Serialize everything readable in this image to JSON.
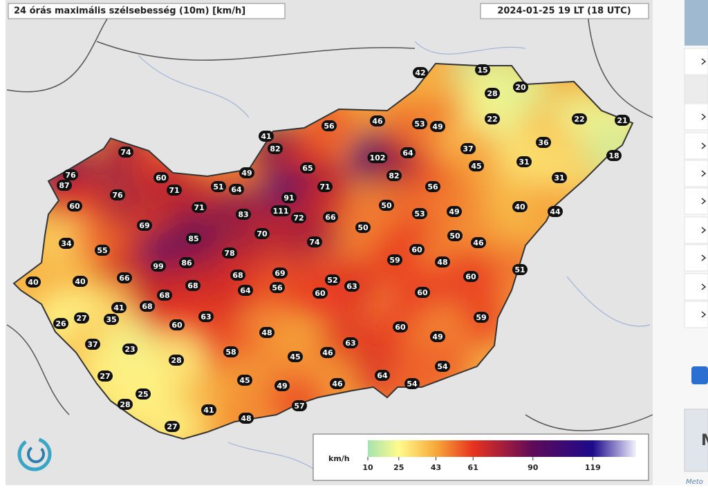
{
  "header": {
    "title": "24 órás maximális szélsebesség (10m) [km/h]",
    "timestamp": "2024-01-25 19 LT (18 UTC)"
  },
  "stations": [
    74,
    76,
    87,
    60,
    76,
    71,
    60,
    51,
    64,
    49,
    41,
    82,
    65,
    56,
    46,
    102,
    64,
    82,
    53,
    49,
    42,
    15,
    28,
    20,
    22,
    22,
    21,
    37,
    45,
    36,
    31,
    18,
    31,
    56,
    71,
    91,
    111,
    72,
    66,
    71,
    69,
    83,
    70,
    85,
    74,
    50,
    50,
    53,
    49,
    40,
    44,
    50,
    46,
    34,
    55,
    78,
    59,
    60,
    48,
    99,
    86,
    51,
    40,
    40,
    66,
    68,
    69,
    68,
    64,
    56,
    52,
    63,
    60,
    60,
    60,
    68,
    41,
    68,
    35,
    27,
    26,
    63,
    60,
    59,
    60,
    49,
    48,
    37,
    23,
    58,
    45,
    46,
    63,
    28,
    54,
    27,
    45,
    49,
    46,
    64,
    54,
    25,
    28,
    57,
    41,
    48,
    27
  ],
  "legend": {
    "unit": "km/h",
    "ticks": [
      10,
      25,
      43,
      61,
      90,
      119
    ],
    "colors": [
      "#a6e3ae",
      "#fffb8c",
      "#f7a93a",
      "#e8321e",
      "#5e0a5a",
      "#1c0a8c"
    ],
    "range": [
      10,
      140
    ],
    "max_color": "#f2f2ff"
  },
  "sidebar": {
    "card_letter": "M",
    "caption": "Meto"
  }
}
